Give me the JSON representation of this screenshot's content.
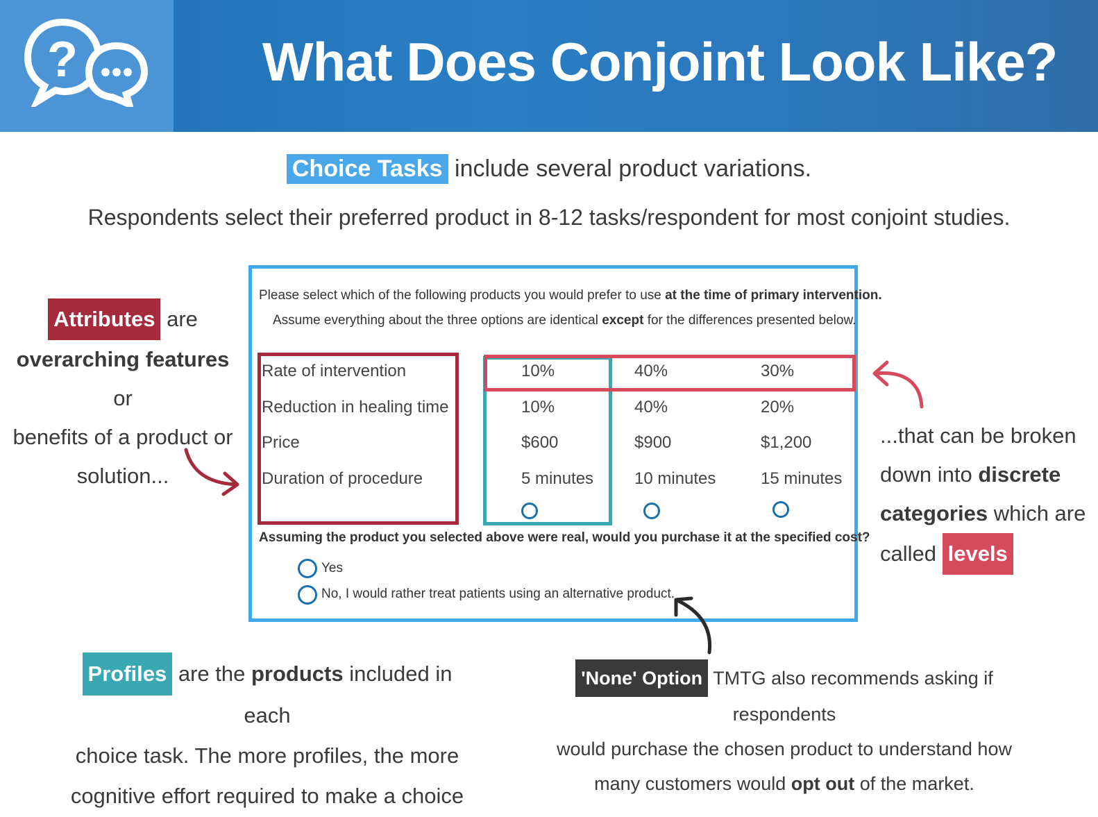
{
  "header": {
    "title": "What Does Conjoint Look Like?"
  },
  "intro": {
    "choice_tasks_highlight": "Choice Tasks",
    "line1_rest": " include several product variations.",
    "line2": "Respondents select their preferred product in 8-12 tasks/respondent for most conjoint studies."
  },
  "survey": {
    "question_prefix": "Please select which of the following products you would prefer to use ",
    "question_bold": "at the time of  primary intervention.",
    "assume_prefix": "Assume everything about the three options are identical ",
    "assume_bold": "except",
    "assume_suffix": " for the differences presented below.",
    "attributes": [
      "Rate of intervention",
      "Reduction in healing time",
      "Price",
      "Duration of procedure"
    ],
    "profiles": [
      [
        "10%",
        "10%",
        "$600",
        "5 minutes"
      ],
      [
        "40%",
        "40%",
        "$900",
        "10 minutes"
      ],
      [
        "30%",
        "20%",
        "$1,200",
        "15 minutes"
      ]
    ],
    "purchase_question": "Assuming the product you selected above were real, would you purchase it at the specified cost?",
    "options": [
      "Yes",
      "No, I would rather treat patients using an alternative product."
    ]
  },
  "left_note": {
    "highlight": "Attributes",
    "after_highlight": " are",
    "bold": "overarching features",
    "rest1": " or",
    "rest2": "benefits of a product or",
    "rest3": "solution..."
  },
  "right_note": {
    "line1": "...that can be broken",
    "line2_prefix": "down into ",
    "line2_bold": "discrete",
    "line3_bold": "categories",
    "line3_suffix": " which are",
    "line4_prefix": "called ",
    "highlight": "levels"
  },
  "profiles_note": {
    "highlight": "Profiles",
    "prefix": " are the ",
    "bold": "products",
    "suffix": " included in each",
    "line2": "choice task. The more profiles, the more",
    "line3": "cognitive effort required to make a choice"
  },
  "none_note": {
    "highlight": "'None' Option",
    "line1": " TMTG also recommends asking if respondents",
    "line2": "would purchase the chosen product to understand how",
    "line3_prefix": "many customers would ",
    "line3_bold": "opt out",
    "line3_suffix": " of the market."
  },
  "colors": {
    "header_blue": "#2a7ec4",
    "choice_blue": "#4aa8ea",
    "attribute_red": "#a52a3c",
    "profile_teal": "#3aa8b0",
    "level_pink": "#d64a5e",
    "none_dark": "#3a3a3a"
  }
}
